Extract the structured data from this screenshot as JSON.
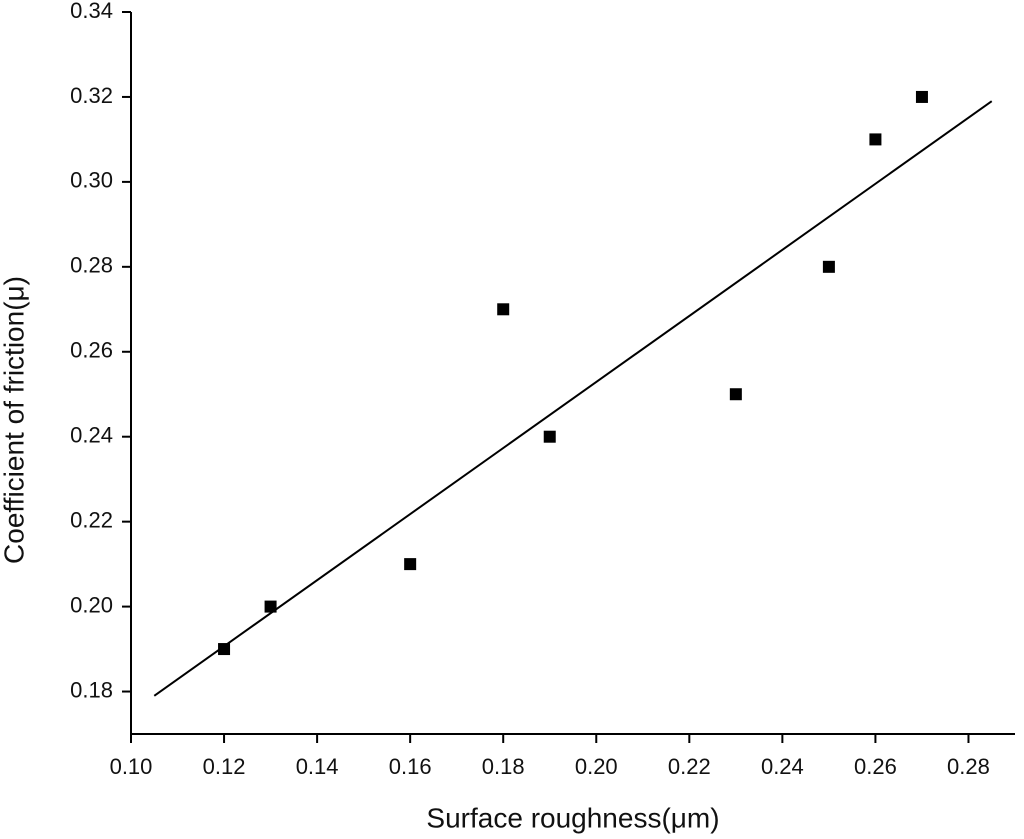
{
  "chart_data": {
    "type": "scatter",
    "xlabel": "Surface roughness(μm)",
    "ylabel": "Coefficient of friction(μ)",
    "series": [
      {
        "color": "#000000",
        "x": [
          0.12,
          0.13,
          0.16,
          0.18,
          0.19,
          0.23,
          0.25,
          0.26,
          0.27
        ],
        "values": [
          0.19,
          0.2,
          0.21,
          0.27,
          0.24,
          0.25,
          0.28,
          0.31,
          0.32
        ]
      }
    ],
    "fit": {
      "color": "#000000",
      "x": [
        0.105,
        0.285
      ],
      "values": [
        0.179,
        0.319
      ]
    },
    "xlim": [
      0.1,
      0.29
    ],
    "ylim": [
      0.17,
      0.34
    ],
    "xticks": [
      {
        "value": 0.1,
        "label": "0.10"
      },
      0.12,
      0.14,
      0.16,
      0.18,
      {
        "value": 0.2,
        "label": "0.20"
      },
      0.22,
      0.24,
      0.26,
      0.28
    ],
    "yticks": [
      0.18,
      {
        "value": 0.2,
        "label": "0.20"
      },
      0.22,
      0.24,
      0.26,
      0.28,
      {
        "value": 0.3,
        "label": "0.30"
      },
      0.32,
      0.34
    ]
  }
}
